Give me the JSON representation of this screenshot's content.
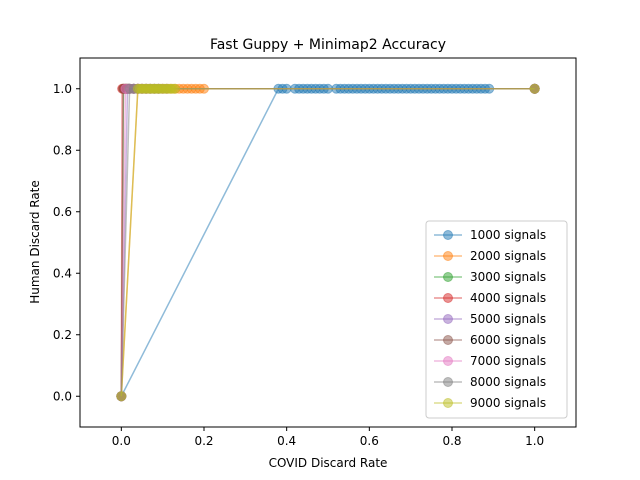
{
  "chart_data": {
    "type": "line",
    "title": "Fast Guppy + Minimap2 Accuracy",
    "xlabel": "COVID Discard Rate",
    "ylabel": "Human Discard Rate",
    "xlim": [
      -0.1,
      1.1
    ],
    "ylim": [
      -0.1,
      1.1
    ],
    "xticks": [
      0.0,
      0.2,
      0.4,
      0.6,
      0.8,
      1.0
    ],
    "xtick_labels": [
      "0.0",
      "0.2",
      "0.4",
      "0.6",
      "0.8",
      "1.0"
    ],
    "yticks": [
      0.0,
      0.2,
      0.4,
      0.6,
      0.8,
      1.0
    ],
    "ytick_labels": [
      "0.0",
      "0.2",
      "0.4",
      "0.6",
      "0.8",
      "1.0"
    ],
    "grid": false,
    "legend_position": "lower-right",
    "marker": "circle",
    "series": [
      {
        "name": "1000 signals",
        "color": "#1f77b4",
        "x": [
          0.0,
          0.38,
          0.39,
          0.4,
          0.42,
          0.43,
          0.44,
          0.45,
          0.46,
          0.47,
          0.48,
          0.49,
          0.5,
          0.52,
          0.53,
          0.54,
          0.55,
          0.56,
          0.57,
          0.58,
          0.59,
          0.6,
          0.61,
          0.62,
          0.63,
          0.64,
          0.65,
          0.66,
          0.67,
          0.68,
          0.69,
          0.7,
          0.71,
          0.72,
          0.73,
          0.74,
          0.75,
          0.76,
          0.77,
          0.78,
          0.79,
          0.8,
          0.81,
          0.82,
          0.83,
          0.84,
          0.85,
          0.86,
          0.87,
          0.88,
          0.89,
          1.0
        ],
        "y": [
          0.0,
          1.0,
          1.0,
          1.0,
          1.0,
          1.0,
          1.0,
          1.0,
          1.0,
          1.0,
          1.0,
          1.0,
          1.0,
          1.0,
          1.0,
          1.0,
          1.0,
          1.0,
          1.0,
          1.0,
          1.0,
          1.0,
          1.0,
          1.0,
          1.0,
          1.0,
          1.0,
          1.0,
          1.0,
          1.0,
          1.0,
          1.0,
          1.0,
          1.0,
          1.0,
          1.0,
          1.0,
          1.0,
          1.0,
          1.0,
          1.0,
          1.0,
          1.0,
          1.0,
          1.0,
          1.0,
          1.0,
          1.0,
          1.0,
          1.0,
          1.0,
          1.0
        ]
      },
      {
        "name": "2000 signals",
        "color": "#ff7f0e",
        "x": [
          0.0,
          0.04,
          0.05,
          0.06,
          0.07,
          0.08,
          0.09,
          0.1,
          0.11,
          0.12,
          0.13,
          0.14,
          0.15,
          0.16,
          0.17,
          0.18,
          0.19,
          0.2,
          1.0
        ],
        "y": [
          0.0,
          1.0,
          1.0,
          1.0,
          1.0,
          1.0,
          1.0,
          1.0,
          1.0,
          1.0,
          1.0,
          1.0,
          1.0,
          1.0,
          1.0,
          1.0,
          1.0,
          1.0,
          1.0
        ]
      },
      {
        "name": "3000 signals",
        "color": "#2ca02c",
        "x": [
          0.0,
          0.005,
          0.01,
          0.015,
          0.02,
          0.03,
          1.0
        ],
        "y": [
          0.0,
          1.0,
          1.0,
          1.0,
          1.0,
          1.0,
          1.0
        ]
      },
      {
        "name": "4000 signals",
        "color": "#d62728",
        "x": [
          0.0,
          0.002,
          0.005,
          0.008,
          0.012,
          0.016,
          1.0
        ],
        "y": [
          0.0,
          1.0,
          1.0,
          1.0,
          1.0,
          1.0,
          1.0
        ]
      },
      {
        "name": "5000 signals",
        "color": "#9467bd",
        "x": [
          0.0,
          0.015,
          0.02,
          0.03,
          0.04,
          0.05,
          0.06,
          0.07,
          0.08,
          0.09,
          0.1,
          0.11,
          1.0
        ],
        "y": [
          0.0,
          1.0,
          1.0,
          1.0,
          1.0,
          1.0,
          1.0,
          1.0,
          1.0,
          1.0,
          1.0,
          1.0,
          1.0
        ]
      },
      {
        "name": "6000 signals",
        "color": "#8c564b",
        "x": [
          0.0,
          0.005,
          0.01,
          0.02,
          0.03,
          0.04,
          1.0
        ],
        "y": [
          0.0,
          1.0,
          1.0,
          1.0,
          1.0,
          1.0,
          1.0
        ]
      },
      {
        "name": "7000 signals",
        "color": "#e377c2",
        "x": [
          0.0,
          0.01,
          0.02,
          0.03,
          0.04,
          0.05,
          0.06,
          1.0
        ],
        "y": [
          0.0,
          1.0,
          1.0,
          1.0,
          1.0,
          1.0,
          1.0,
          1.0
        ]
      },
      {
        "name": "8000 signals",
        "color": "#7f7f7f",
        "x": [
          0.0,
          0.02,
          0.03,
          0.04,
          0.05,
          0.06,
          0.07,
          0.08,
          0.09,
          1.0
        ],
        "y": [
          0.0,
          1.0,
          1.0,
          1.0,
          1.0,
          1.0,
          1.0,
          1.0,
          1.0,
          1.0
        ]
      },
      {
        "name": "9000 signals",
        "color": "#bcbd22",
        "x": [
          0.0,
          0.04,
          0.045,
          0.05,
          0.055,
          0.06,
          0.065,
          0.07,
          0.075,
          0.08,
          0.085,
          0.09,
          0.095,
          0.1,
          0.105,
          0.11,
          0.115,
          0.12,
          0.125,
          0.13,
          1.0
        ],
        "y": [
          0.0,
          1.0,
          1.0,
          1.0,
          1.0,
          1.0,
          1.0,
          1.0,
          1.0,
          1.0,
          1.0,
          1.0,
          1.0,
          1.0,
          1.0,
          1.0,
          1.0,
          1.0,
          1.0,
          1.0,
          1.0
        ]
      }
    ]
  }
}
